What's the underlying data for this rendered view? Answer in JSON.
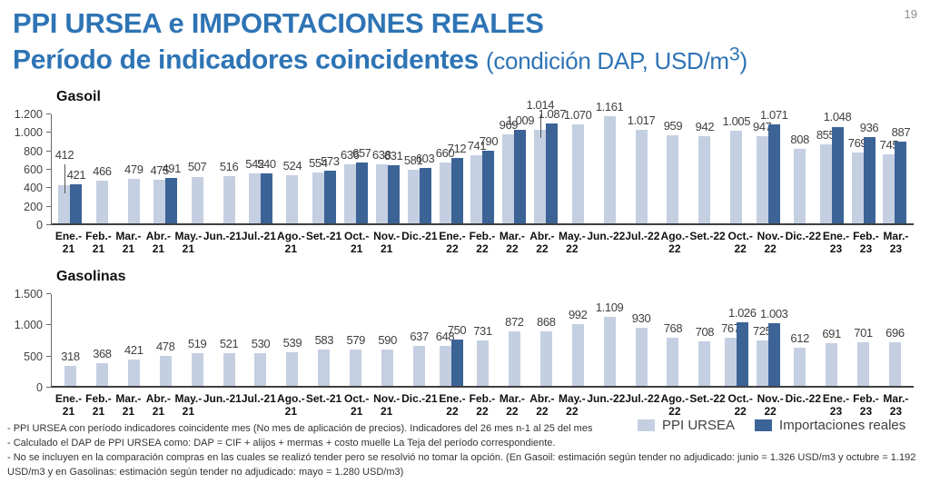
{
  "page": {
    "number": "19"
  },
  "header": {
    "title": "PPI URSEA e IMPORTACIONES REALES",
    "subtitle_main": "Período de indicadores coincidentes ",
    "subtitle_paren_open": "(condición DAP, USD/m",
    "subtitle_sup": "3",
    "subtitle_paren_close": ")"
  },
  "colors": {
    "ppi_ursea": "#C5CFE2",
    "importaciones": "#3C6396",
    "title_blue": "#2E74B5"
  },
  "legend": {
    "items": [
      {
        "label": "PPI URSEA",
        "color": "#C5CFE2"
      },
      {
        "label": "Importaciones reales",
        "color": "#3C6396"
      }
    ]
  },
  "footnotes": [
    "- PPI URSEA con período indicadores coincidente mes (No mes de aplicación de precios). Indicadores del 26 mes n-1 al 25 del mes",
    "- Calculado el DAP de PPI URSEA como: DAP = CIF + alijos + mermas + costo muelle La Teja del período correspondiente.",
    "- No se incluyen en la comparación compras en las cuales se realizó tender pero se resolvió no tomar la opción. (En Gasoil: estimación según tender no adjudicado:  junio = 1.326 USD/m3 y octubre = 1.192",
    "USD/m3 y en Gasolinas: estimación según tender no adjudicado:  mayo = 1.280 USD/m3)"
  ],
  "chart_data": [
    {
      "type": "bar",
      "title": "Gasoil",
      "ylabel": "",
      "xlabel": "",
      "ylim": [
        0,
        1200
      ],
      "grid": false,
      "legend_position": "bottom-right",
      "yticks": [
        {
          "value": 0,
          "label": "0"
        },
        {
          "value": 200,
          "label": "200"
        },
        {
          "value": 400,
          "label": "400"
        },
        {
          "value": 600,
          "label": "600"
        },
        {
          "value": 800,
          "label": "800"
        },
        {
          "value": 1000,
          "label": "1.000"
        },
        {
          "value": 1200,
          "label": "1.200"
        }
      ],
      "categories": [
        "Ene.-\n21",
        "Feb.-\n21",
        "Mar.-\n21",
        "Abr.-\n21",
        "May.-\n21",
        "Jun.-21",
        "Jul.-21",
        "Ago.-\n21",
        "Set.-21",
        "Oct.-\n21",
        "Nov.-\n21",
        "Dic.-21",
        "Ene.-\n22",
        "Feb.-\n22",
        "Mar.-\n22",
        "Abr.-\n22",
        "May.-\n22",
        "Jun.-22",
        "Jul.-22",
        "Ago.-\n22",
        "Set.-22",
        "Oct.-\n22",
        "Nov.-\n22",
        "Dic.-22",
        "Ene.-\n23",
        "Feb.-\n23",
        "Mar.-\n23"
      ],
      "series": [
        {
          "name": "PPI URSEA",
          "color": "#C5CFE2",
          "values": [
            412,
            466,
            479,
            475,
            507,
            516,
            542,
            524,
            554,
            636,
            638,
            581,
            660,
            741,
            969,
            1014,
            1070,
            1161,
            1017,
            959,
            942,
            1005,
            947,
            808,
            855,
            769,
            745
          ]
        },
        {
          "name": "Importaciones reales",
          "color": "#3C6396",
          "values": [
            421,
            null,
            null,
            491,
            null,
            null,
            540,
            null,
            573,
            657,
            631,
            603,
            712,
            790,
            1009,
            1087,
            null,
            null,
            null,
            null,
            null,
            null,
            1071,
            null,
            1048,
            936,
            887
          ]
        }
      ],
      "leaders": [
        {
          "series": 0,
          "index": 0,
          "raise": 26
        },
        {
          "series": 0,
          "index": 15,
          "raise": 20
        }
      ]
    },
    {
      "type": "bar",
      "title": "Gasolinas",
      "ylabel": "",
      "xlabel": "",
      "ylim": [
        0,
        1500
      ],
      "grid": false,
      "legend_position": "bottom-right",
      "yticks": [
        {
          "value": 0,
          "label": "0"
        },
        {
          "value": 500,
          "label": "500"
        },
        {
          "value": 1000,
          "label": "1.000"
        },
        {
          "value": 1500,
          "label": "1.500"
        }
      ],
      "categories": [
        "Ene.-\n21",
        "Feb.-\n21",
        "Mar.-\n21",
        "Abr.-\n21",
        "May.-\n21",
        "Jun.-21",
        "Jul.-21",
        "Ago.-\n21",
        "Set.-21",
        "Oct.-\n21",
        "Nov.-\n21",
        "Dic.-21",
        "Ene.-\n22",
        "Feb.-\n22",
        "Mar.-\n22",
        "Abr.-\n22",
        "May.-\n22",
        "Jun.-22",
        "Jul.-22",
        "Ago.-\n22",
        "Set.-22",
        "Oct.-\n22",
        "Nov.-\n22",
        "Dic.-22",
        "Ene.-\n23",
        "Feb.-\n23",
        "Mar.-\n23"
      ],
      "series": [
        {
          "name": "PPI URSEA",
          "color": "#C5CFE2",
          "values": [
            318,
            368,
            421,
            478,
            519,
            521,
            530,
            539,
            583,
            579,
            590,
            637,
            648,
            731,
            872,
            868,
            992,
            1109,
            930,
            768,
            708,
            767,
            725,
            612,
            691,
            701,
            696
          ]
        },
        {
          "name": "Importaciones reales",
          "color": "#3C6396",
          "values": [
            null,
            null,
            null,
            null,
            null,
            null,
            null,
            null,
            null,
            null,
            null,
            null,
            750,
            null,
            null,
            null,
            null,
            null,
            null,
            null,
            null,
            1026,
            1003,
            null,
            null,
            null,
            null
          ]
        }
      ],
      "leaders": []
    }
  ]
}
